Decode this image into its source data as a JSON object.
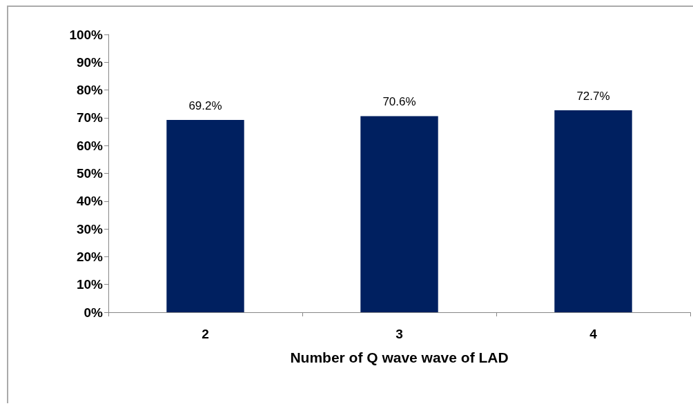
{
  "chart_data": {
    "type": "bar",
    "xlabel": "Number of Q wave wave of LAD",
    "categories": [
      "2",
      "3",
      "4"
    ],
    "values": [
      69.2,
      70.6,
      72.7
    ],
    "color": "#002060",
    "value_labels": [
      "69.2%",
      "70.6%",
      "72.7%"
    ],
    "ylim": [
      0,
      100
    ],
    "yticks": [
      {
        "value": 0,
        "label": "0%"
      },
      {
        "value": 10,
        "label": "10%"
      },
      {
        "value": 20,
        "label": "20%"
      },
      {
        "value": 30,
        "label": "30%"
      },
      {
        "value": 40,
        "label": "40%"
      },
      {
        "value": 50,
        "label": "50%"
      },
      {
        "value": 60,
        "label": "60%"
      },
      {
        "value": 70,
        "label": "70%"
      },
      {
        "value": 80,
        "label": "80%"
      },
      {
        "value": 90,
        "label": "90%"
      },
      {
        "value": 100,
        "label": "100%"
      }
    ],
    "grid": false
  }
}
